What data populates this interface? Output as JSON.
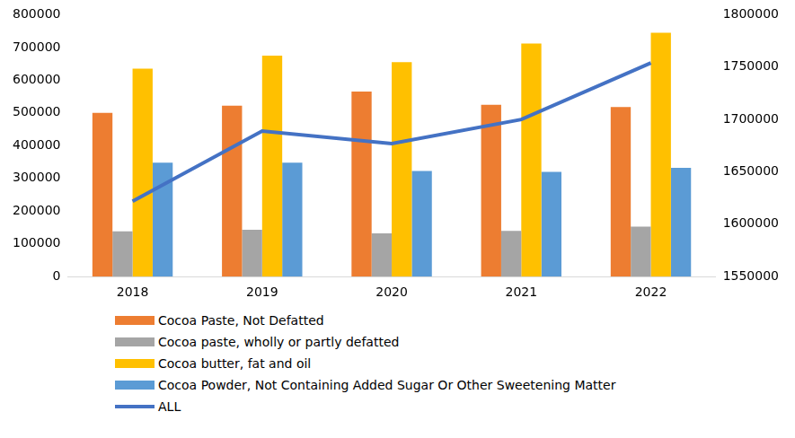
{
  "chart_data": {
    "type": "bar",
    "categories": [
      "2018",
      "2019",
      "2020",
      "2021",
      "2022"
    ],
    "series": [
      {
        "name": "Cocoa Paste, Not Defatted",
        "type": "bar",
        "color": "#ED7D31",
        "values": [
          500000,
          522000,
          565000,
          525000,
          518000
        ]
      },
      {
        "name": "Cocoa paste, wholly or partly defatted",
        "type": "bar",
        "color": "#A5A5A5",
        "values": [
          138000,
          143000,
          132000,
          140000,
          153000
        ]
      },
      {
        "name": "Cocoa butter, fat and oil",
        "type": "bar",
        "color": "#FFC000",
        "values": [
          635000,
          675000,
          655000,
          712000,
          745000
        ]
      },
      {
        "name": "Cocoa Powder, Not Containing Added Sugar Or Other Sweetening Matter",
        "type": "bar",
        "color": "#5B9BD5",
        "values": [
          348000,
          348000,
          323000,
          320000,
          332000
        ]
      },
      {
        "name": "ALL",
        "type": "line",
        "axis": "y2",
        "color": "#4472C4",
        "values": [
          1622000,
          1689000,
          1677000,
          1700000,
          1754000
        ]
      }
    ],
    "ylim": [
      0,
      800000
    ],
    "yticks": [
      0,
      100000,
      200000,
      300000,
      400000,
      500000,
      600000,
      700000,
      800000
    ],
    "y2lim": [
      1550000,
      1800000
    ],
    "y2ticks": [
      1550000,
      1600000,
      1650000,
      1700000,
      1750000,
      1800000
    ],
    "grid": false,
    "legend": "bottom"
  }
}
